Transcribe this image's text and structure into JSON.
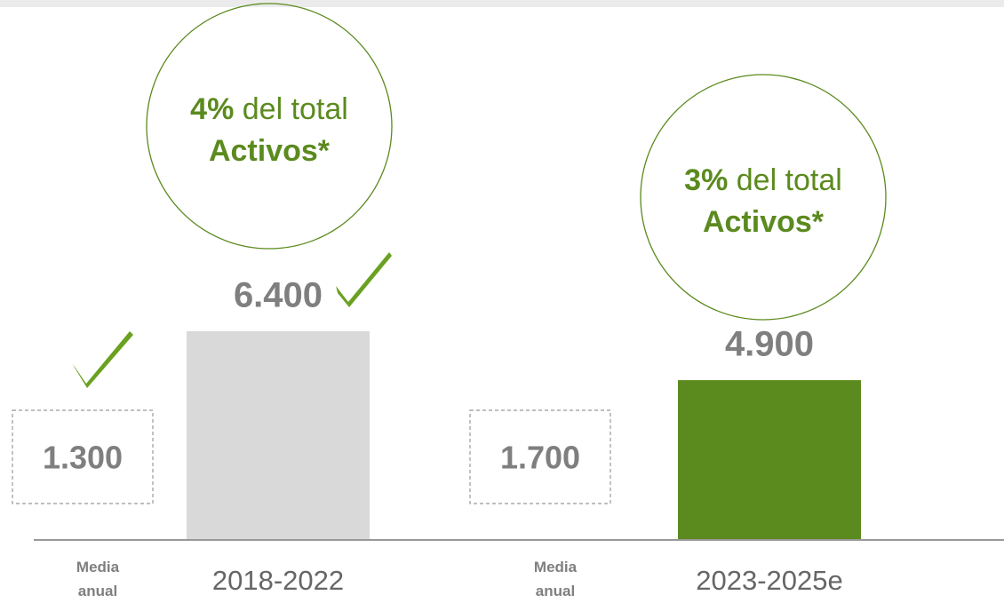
{
  "chart_data": {
    "type": "bar",
    "categories": [
      "2018-2022",
      "2023-2025e"
    ],
    "values": [
      6400,
      4900
    ],
    "value_labels": [
      "6.400",
      "4.900"
    ],
    "colors": [
      "#d9d9d9",
      "#5b8a1e"
    ],
    "averages": [
      {
        "label": "Media anual",
        "value": 1300,
        "value_label": "1.300"
      },
      {
        "label": "Media anual",
        "value": 1700,
        "value_label": "1.700"
      }
    ],
    "annotations": [
      {
        "value": 4,
        "label": "4%",
        "text": "del total",
        "bold": "Activos*"
      },
      {
        "value": 3,
        "label": "3%",
        "text": "del total",
        "bold": "Activos*"
      }
    ]
  }
}
